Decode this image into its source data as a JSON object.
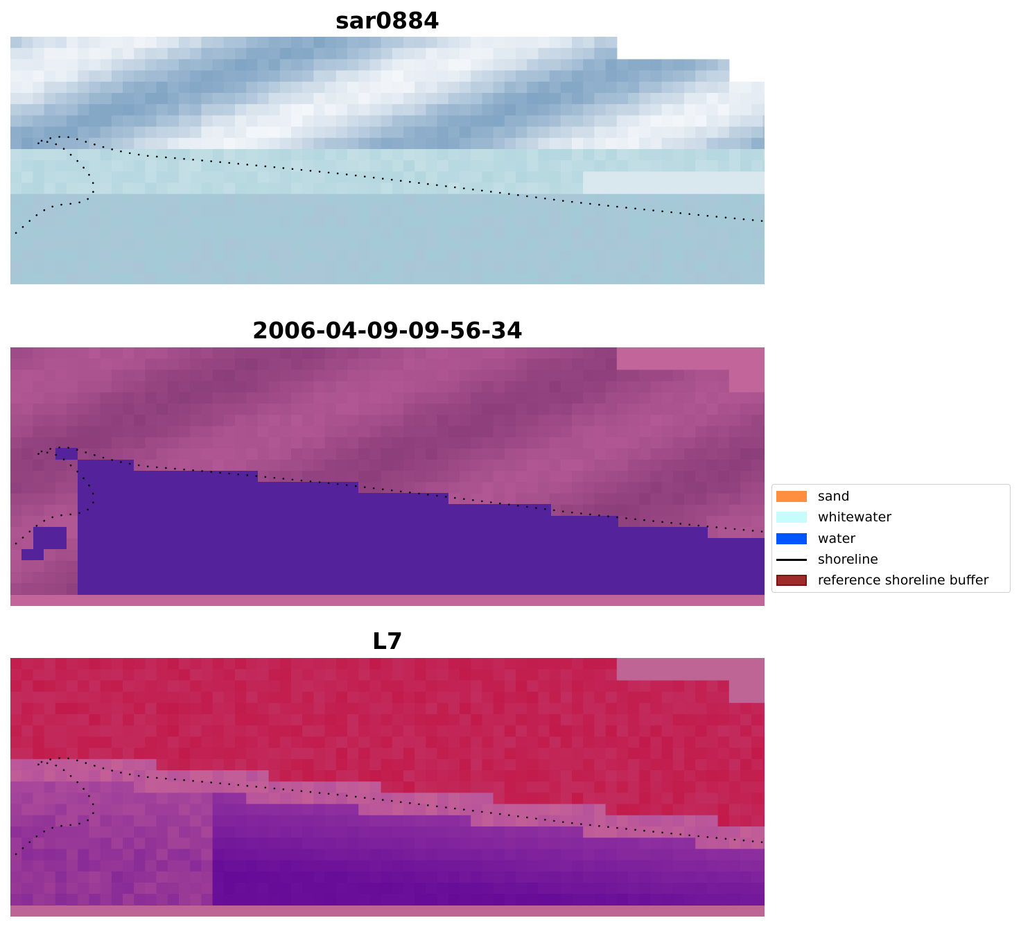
{
  "panels": [
    {
      "title": "sar0884",
      "style": "rgb"
    },
    {
      "title": "2006-04-09-09-56-34",
      "style": "classified"
    },
    {
      "title": "L7",
      "style": "index"
    }
  ],
  "legend": {
    "placement": "right-middle",
    "items": [
      {
        "label": "sand",
        "kind": "patch",
        "color": "#ff8f3f"
      },
      {
        "label": "whitewater",
        "kind": "patch",
        "color": "#c7fcfc"
      },
      {
        "label": "water",
        "kind": "patch",
        "color": "#0055ff"
      },
      {
        "label": "shoreline",
        "kind": "line",
        "color": "#000000"
      },
      {
        "label": "reference shoreline buffer",
        "kind": "patch",
        "color": "#9e2a2a"
      }
    ]
  },
  "colors": {
    "rgb_base": "#aac6d6",
    "class_background": "#c1659a",
    "class_water": "#54239b",
    "index_high": "#c21b4b",
    "index_low": "#650b98",
    "nodata": "#be6596"
  }
}
